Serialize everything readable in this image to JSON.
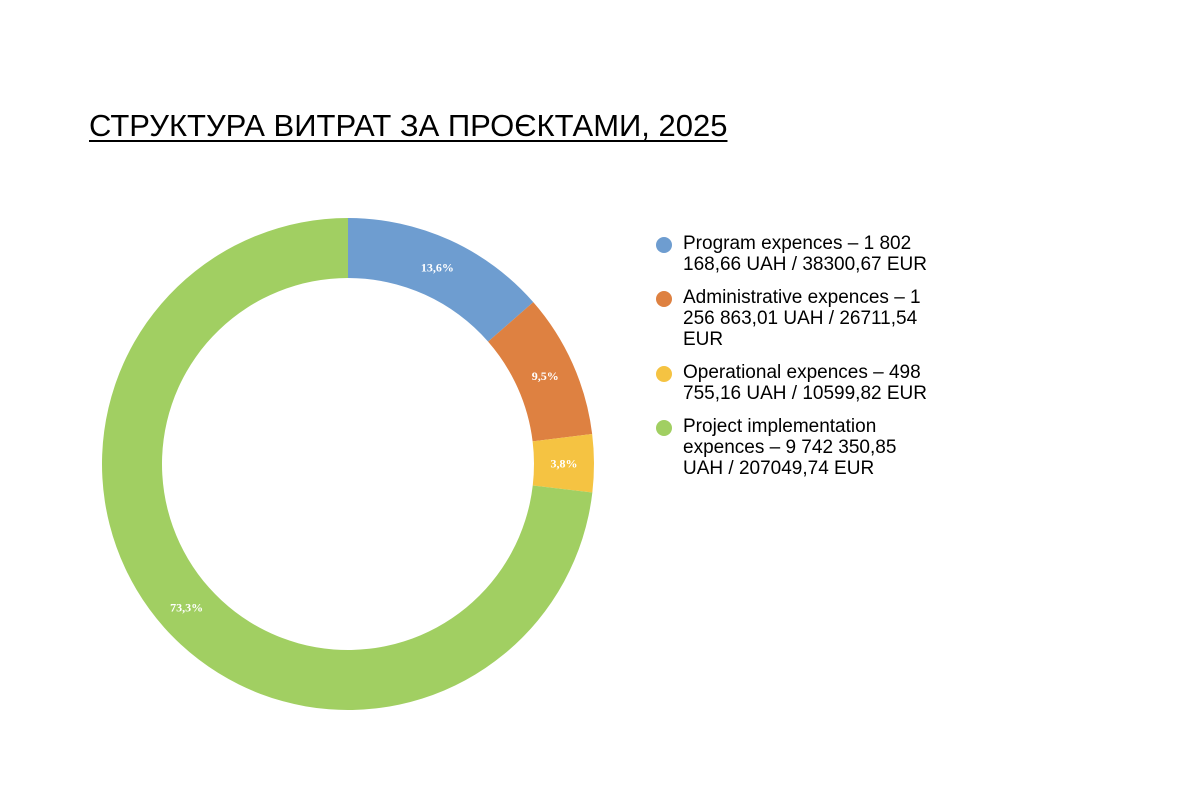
{
  "title": "СТРУКТУРА ВИТРАТ ЗА ПРОЄКТАМИ, 2025",
  "chart_data": {
    "type": "pie",
    "variant": "donut",
    "title": "СТРУКТУРА ВИТРАТ ЗА ПРОЄКТАМИ, 2025",
    "legend_position": "right",
    "slices": [
      {
        "legend": "Program expences  – 1 802\n168,66 UAH / 38300,67 EUR",
        "percent": 13.6,
        "label": "13,6%",
        "color": "#6e9dd0"
      },
      {
        "legend": "Administrative  expences – 1\n256 863,01 UAH / 26711,54\nEUR",
        "percent": 9.5,
        "label": "9,5%",
        "color": "#de8141"
      },
      {
        "legend": "Operational expences – 498\n755,16 UAH / 10599,82 EUR",
        "percent": 3.8,
        "label": "3,8%",
        "color": "#f5c342"
      },
      {
        "legend": "Project implementation\nexpences – 9 742 350,85\nUAH / 207049,74 EUR",
        "percent": 73.3,
        "label": "73,3%",
        "color": "#a1cf62"
      }
    ]
  }
}
